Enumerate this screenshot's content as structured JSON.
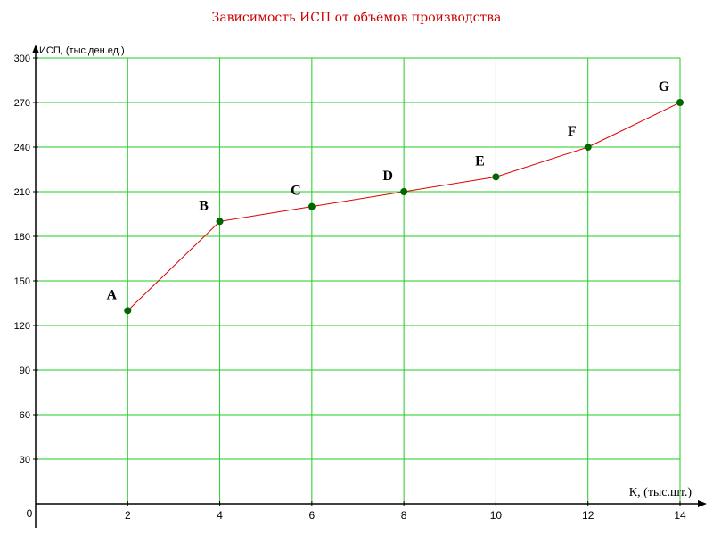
{
  "chart_data": {
    "type": "line",
    "title": "Зависимость ИСП от объёмов производства",
    "xlabel": "К, (тыс.шт.)",
    "ylabel": "ИСП, (тыс.ден.ед.)",
    "origin_label": "0",
    "xlim": [
      0,
      14
    ],
    "ylim": [
      0,
      300
    ],
    "x_ticks": [
      2,
      4,
      6,
      8,
      10,
      12,
      14
    ],
    "y_ticks": [
      30,
      60,
      90,
      120,
      150,
      180,
      210,
      240,
      270,
      300
    ],
    "grid": true,
    "series": [
      {
        "x": [
          2,
          4,
          6,
          8,
          10,
          12,
          14
        ],
        "y": [
          130,
          190,
          200,
          210,
          220,
          240,
          270
        ],
        "point_labels": [
          "A",
          "B",
          "C",
          "D",
          "E",
          "F",
          "G"
        ]
      }
    ],
    "colors": {
      "title": "#cc0000",
      "line": "#dd0000",
      "marker": "#006600",
      "grid": "#22cc22",
      "axis": "#000000"
    }
  }
}
